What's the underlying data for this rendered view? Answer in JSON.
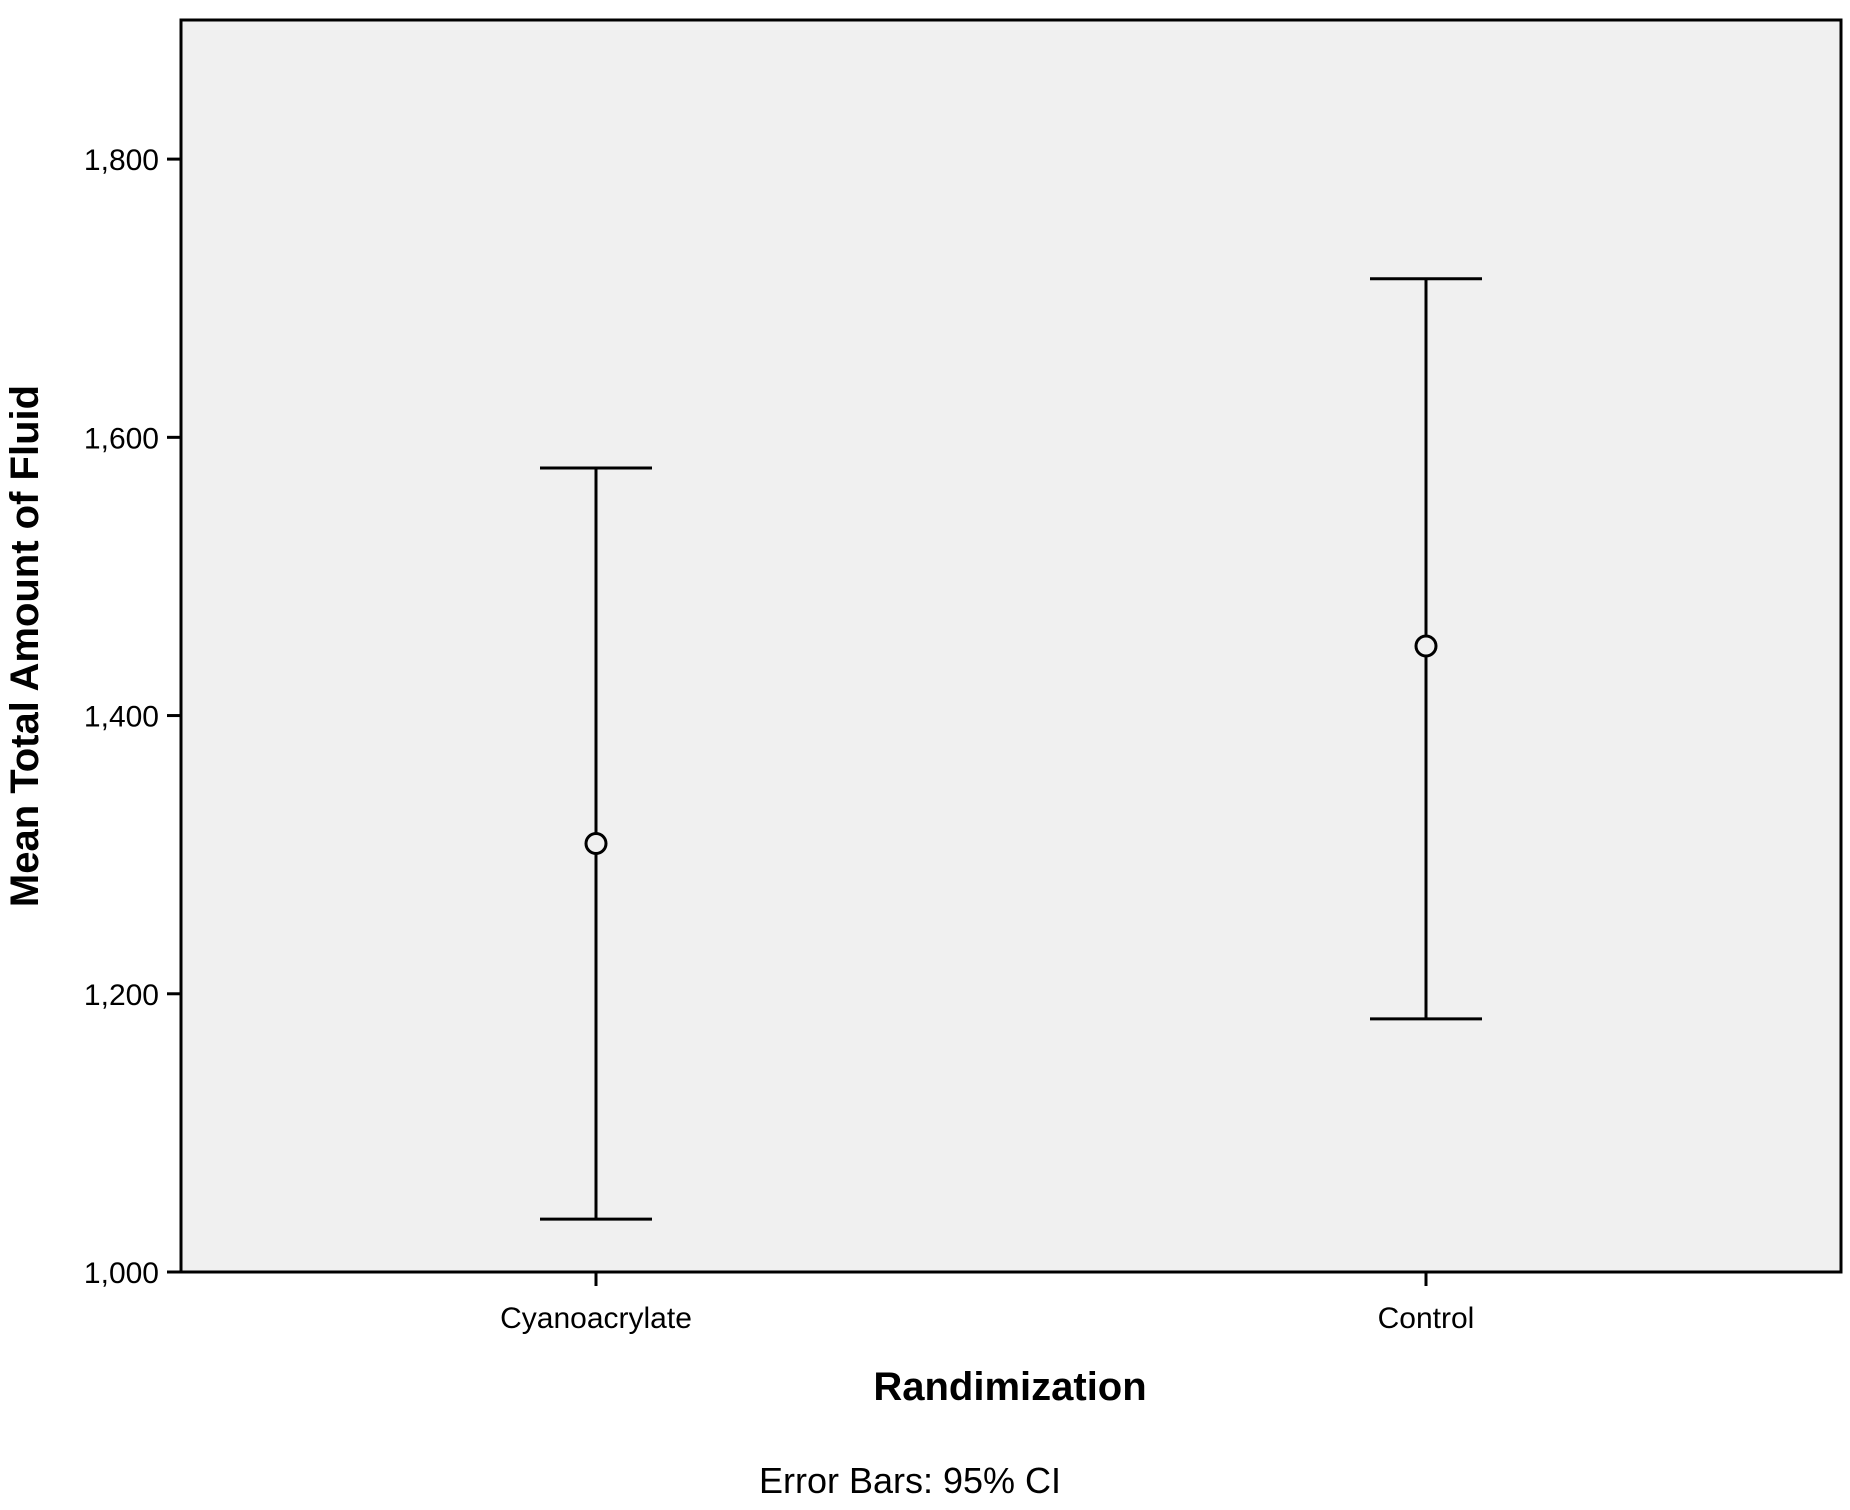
{
  "chart_data": {
    "type": "error-bar",
    "categories": [
      "Cyanoacrylate",
      "Control"
    ],
    "series": [
      {
        "means": [
          1308,
          1450
        ],
        "ci_lower": [
          1038,
          1182
        ],
        "ci_upper": [
          1578,
          1714
        ]
      }
    ],
    "xlabel": "Randimization",
    "ylabel": "Mean Total Amount of Fluid",
    "ylim": [
      1000,
      1900
    ],
    "yticks": [
      1000,
      1200,
      1400,
      1600,
      1800
    ],
    "ytick_labels": [
      "1,000",
      "1,200",
      "1,400",
      "1,600",
      "1,800"
    ],
    "footnote": "Error Bars: 95% CI",
    "grid": false,
    "plot_background": "#f0f0f0",
    "line_color": "#000000"
  }
}
